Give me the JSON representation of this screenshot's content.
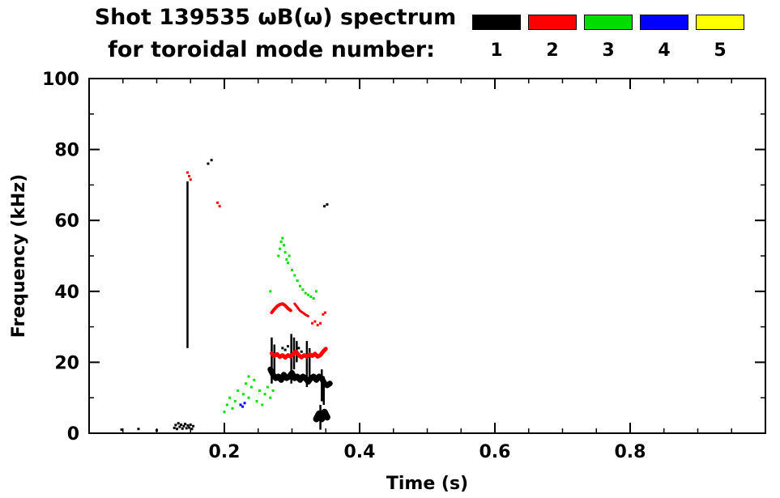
{
  "title_line1": "Shot 139535 ωB(ω) spectrum",
  "title_line2": "for toroidal mode number:",
  "legend": {
    "items": [
      {
        "label": "1",
        "color": "#000000"
      },
      {
        "label": "2",
        "color": "#ff0000"
      },
      {
        "label": "3",
        "color": "#00dd00"
      },
      {
        "label": "4",
        "color": "#0000ff"
      },
      {
        "label": "5",
        "color": "#ffff00"
      }
    ]
  },
  "chart_data": {
    "type": "scatter",
    "title": "Shot 139535 ωB(ω) spectrum for toroidal mode number",
    "xlabel": "Time (s)",
    "ylabel": "Frequency (kHz)",
    "xlim": [
      0,
      1
    ],
    "ylim": [
      0,
      100
    ],
    "xticks": [
      0.2,
      0.4,
      0.6,
      0.8
    ],
    "xtick_labels": [
      "0.2",
      "0.4",
      "0.6",
      "0.8"
    ],
    "x_minor_step": 0.05,
    "yticks": [
      0,
      20,
      40,
      60,
      80,
      100
    ],
    "ytick_labels": [
      "0",
      "20",
      "40",
      "60",
      "80",
      "100"
    ],
    "y_minor_step": 10,
    "grid": false,
    "legend_position": "top-right",
    "series": [
      {
        "name": "n1",
        "color": "#000000",
        "points": [
          [
            0.048,
            1
          ],
          [
            0.073,
            1.2
          ],
          [
            0.1,
            0.8
          ],
          [
            0.126,
            1.5
          ],
          [
            0.128,
            2.3
          ],
          [
            0.13,
            1.2
          ],
          [
            0.132,
            2.8
          ],
          [
            0.134,
            1.8
          ],
          [
            0.136,
            2.4
          ],
          [
            0.138,
            1.3
          ],
          [
            0.14,
            2.0
          ],
          [
            0.142,
            2.6
          ],
          [
            0.144,
            1.4
          ],
          [
            0.146,
            2.2
          ],
          [
            0.148,
            1.6
          ],
          [
            0.15,
            2.4
          ],
          [
            0.152,
            1.2
          ],
          [
            0.154,
            2.0
          ],
          [
            0.176,
            76
          ],
          [
            0.181,
            77
          ],
          [
            0.348,
            64
          ],
          [
            0.352,
            64.5
          ],
          [
            0.286,
            24
          ],
          [
            0.29,
            23.5
          ],
          [
            0.294,
            24.5
          ],
          [
            0.31,
            24
          ],
          [
            0.314,
            23
          ]
        ],
        "segments": [
          [
            0.1455,
            24,
            71
          ],
          [
            0.27,
            14,
            27
          ],
          [
            0.274,
            15,
            25
          ],
          [
            0.299,
            14,
            28
          ],
          [
            0.303,
            18,
            27
          ],
          [
            0.307,
            20,
            26
          ],
          [
            0.322,
            13,
            26
          ],
          [
            0.326,
            14,
            24
          ],
          [
            0.344,
            9,
            18
          ],
          [
            0.347,
            8,
            16
          ],
          [
            0.342,
            1,
            8
          ]
        ],
        "lines": [
          {
            "width": 7,
            "pts": [
              [
                0.268,
                18
              ],
              [
                0.272,
                16.5
              ],
              [
                0.276,
                15.5
              ],
              [
                0.28,
                16
              ],
              [
                0.284,
                15
              ],
              [
                0.288,
                16.5
              ],
              [
                0.292,
                15.5
              ],
              [
                0.296,
                16
              ],
              [
                0.3,
                17
              ],
              [
                0.304,
                15.5
              ],
              [
                0.308,
                16
              ],
              [
                0.312,
                15
              ],
              [
                0.316,
                16
              ],
              [
                0.32,
                15.5
              ],
              [
                0.324,
                14.5
              ],
              [
                0.328,
                15.5
              ],
              [
                0.332,
                16
              ],
              [
                0.336,
                15
              ],
              [
                0.34,
                16
              ],
              [
                0.344,
                15.5
              ],
              [
                0.348,
                14
              ],
              [
                0.352,
                13.5
              ],
              [
                0.356,
                14
              ]
            ]
          },
          {
            "width": 8,
            "pts": [
              [
                0.336,
                4
              ],
              [
                0.34,
                5.5
              ],
              [
                0.344,
                4
              ],
              [
                0.348,
                6
              ],
              [
                0.352,
                4.5
              ]
            ]
          }
        ]
      },
      {
        "name": "n2",
        "color": "#ff0000",
        "points": [
          [
            0.1455,
            73.5
          ],
          [
            0.148,
            72.5
          ],
          [
            0.15,
            71.5
          ],
          [
            0.19,
            65
          ],
          [
            0.193,
            64
          ],
          [
            0.33,
            31
          ],
          [
            0.334,
            31.5
          ],
          [
            0.338,
            30.5
          ],
          [
            0.342,
            31
          ],
          [
            0.346,
            33.5
          ],
          [
            0.349,
            34
          ]
        ],
        "segments": [],
        "lines": [
          {
            "width": 4,
            "pts": [
              [
                0.27,
                34
              ],
              [
                0.274,
                35
              ],
              [
                0.278,
                35.8
              ],
              [
                0.282,
                36.3
              ],
              [
                0.286,
                36.5
              ],
              [
                0.29,
                36
              ],
              [
                0.294,
                35.2
              ],
              [
                0.298,
                34.6
              ]
            ]
          },
          {
            "width": 3,
            "pts": [
              [
                0.304,
                36.5
              ],
              [
                0.308,
                35.5
              ],
              [
                0.312,
                34.5
              ],
              [
                0.316,
                34
              ],
              [
                0.32,
                33.4
              ],
              [
                0.324,
                33
              ]
            ]
          },
          {
            "width": 5,
            "pts": [
              [
                0.27,
                22.5
              ],
              [
                0.274,
                21.8
              ],
              [
                0.278,
                22.3
              ],
              [
                0.282,
                21.5
              ],
              [
                0.286,
                22
              ],
              [
                0.29,
                21.3
              ],
              [
                0.294,
                22
              ],
              [
                0.298,
                21.6
              ],
              [
                0.302,
                22.4
              ],
              [
                0.306,
                23
              ],
              [
                0.31,
                22
              ],
              [
                0.314,
                21.4
              ],
              [
                0.318,
                22
              ],
              [
                0.322,
                21.6
              ],
              [
                0.326,
                22.2
              ],
              [
                0.33,
                21.8
              ],
              [
                0.334,
                22.4
              ],
              [
                0.338,
                21.6
              ],
              [
                0.342,
                22
              ],
              [
                0.346,
                23
              ],
              [
                0.35,
                23.8
              ]
            ]
          }
        ]
      },
      {
        "name": "n3",
        "color": "#00dd00",
        "points": [
          [
            0.2,
            6
          ],
          [
            0.204,
            8
          ],
          [
            0.208,
            10
          ],
          [
            0.212,
            7
          ],
          [
            0.216,
            9
          ],
          [
            0.22,
            12
          ],
          [
            0.224,
            8
          ],
          [
            0.228,
            11
          ],
          [
            0.232,
            14
          ],
          [
            0.236,
            10
          ],
          [
            0.24,
            13
          ],
          [
            0.244,
            15
          ],
          [
            0.248,
            9
          ],
          [
            0.252,
            12
          ],
          [
            0.256,
            8
          ],
          [
            0.26,
            11
          ],
          [
            0.264,
            13
          ],
          [
            0.268,
            10
          ],
          [
            0.272,
            12
          ],
          [
            0.236,
            16
          ],
          [
            0.28,
            50
          ],
          [
            0.282,
            52
          ],
          [
            0.284,
            54
          ],
          [
            0.286,
            55
          ],
          [
            0.288,
            53
          ],
          [
            0.29,
            51
          ],
          [
            0.292,
            49
          ],
          [
            0.294,
            48
          ],
          [
            0.296,
            50
          ],
          [
            0.3,
            46
          ],
          [
            0.304,
            44.5
          ],
          [
            0.308,
            43
          ],
          [
            0.312,
            41.5
          ],
          [
            0.316,
            40.5
          ],
          [
            0.32,
            39.5
          ],
          [
            0.324,
            39
          ],
          [
            0.328,
            38.5
          ],
          [
            0.332,
            38
          ],
          [
            0.268,
            40
          ],
          [
            0.336,
            40
          ]
        ],
        "segments": [],
        "lines": []
      },
      {
        "name": "n4",
        "color": "#0000ff",
        "points": [
          [
            0.224,
            8
          ],
          [
            0.227,
            7.5
          ],
          [
            0.23,
            8.5
          ]
        ],
        "segments": [],
        "lines": []
      },
      {
        "name": "n5",
        "color": "#ffff00",
        "points": [],
        "segments": [],
        "lines": []
      }
    ]
  }
}
